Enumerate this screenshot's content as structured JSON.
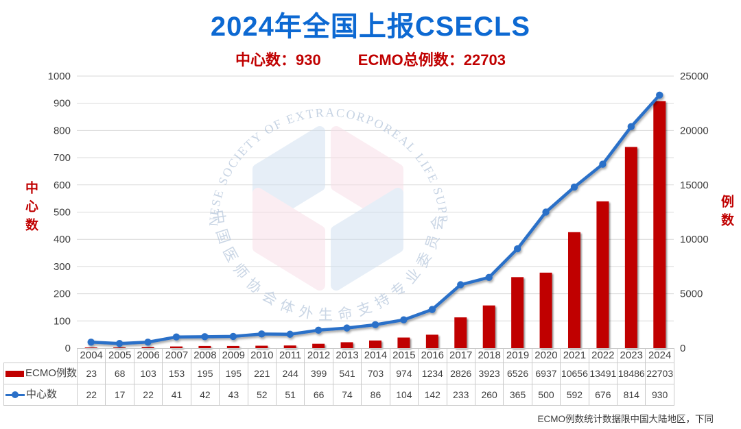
{
  "title": {
    "text": "2024年全国上报CSECLS",
    "color": "#0d69d2"
  },
  "subtitle": {
    "left": "中心数：930",
    "right": "ECMO总例数：22703",
    "color": "#c00000"
  },
  "note": "ECMO例数统计数据限中国大陆地区，下同",
  "watermark": {
    "arc_text_top": "CHINESE SOCIETY OF EXTRACORPOREAL LIFE SUPPORT",
    "arc_text_bottom": "中国医师协会体外生命支持专业委员会",
    "text_color": "#b9c9dd",
    "logo_blue": "#cfdff0",
    "logo_pink": "#f8dde6"
  },
  "chart_data": {
    "type": "combo-bar-line",
    "title": "2024年全国上报CSECLS",
    "categories": [
      "2004",
      "2005",
      "2006",
      "2007",
      "2008",
      "2009",
      "2010",
      "2011",
      "2012",
      "2013",
      "2014",
      "2015",
      "2016",
      "2017",
      "2018",
      "2019",
      "2020",
      "2021",
      "2022",
      "2023",
      "2024"
    ],
    "series": [
      {
        "name": "ECMO例数",
        "type": "bar",
        "axis": "right",
        "color": "#c00000",
        "values": [
          23,
          68,
          103,
          153,
          195,
          195,
          221,
          244,
          399,
          541,
          703,
          974,
          1234,
          2826,
          3923,
          6526,
          6937,
          10656,
          13491,
          18486,
          22703
        ]
      },
      {
        "name": "中心数",
        "type": "line",
        "axis": "left",
        "color": "#2b70c8",
        "values": [
          22,
          17,
          22,
          41,
          42,
          43,
          52,
          51,
          66,
          74,
          86,
          104,
          142,
          233,
          260,
          365,
          500,
          592,
          676,
          814,
          930
        ]
      }
    ],
    "left_axis": {
      "title": "中心数",
      "min": 0,
      "max": 1000,
      "step": 100
    },
    "right_axis": {
      "title": "例数",
      "min": 0,
      "max": 25000,
      "step": 5000
    },
    "grid": true,
    "gridline_color": "#d9d9d9",
    "tick_color": "#3d3d3d",
    "legend_position": "table-left"
  }
}
